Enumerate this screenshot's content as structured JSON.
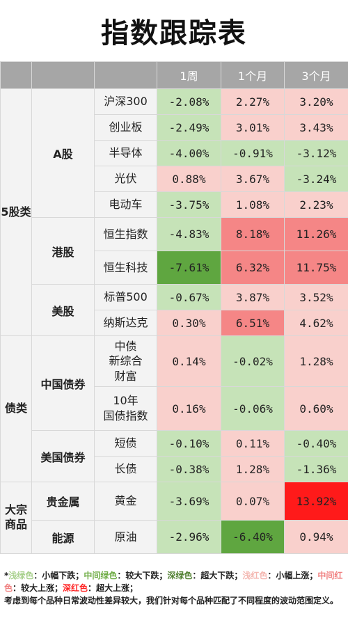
{
  "title": "指数跟踪表",
  "colors": {
    "light_green": "#c6e3b8",
    "mid_green": "#9fd089",
    "deep_green": "#5fa640",
    "light_red": "#f9d0cc",
    "mid_red": "#f58686",
    "deep_red": "#ff1a1a",
    "legend_light_green": "#a9d18e",
    "legend_mid_green": "#70ad47",
    "legend_deep_green": "#548235",
    "legend_light_red": "#f4b8b2",
    "legend_mid_red": "#f08080",
    "legend_deep_red": "#ff2020"
  },
  "chart_data": {
    "type": "table",
    "columns": [
      "",
      "",
      "",
      "1周",
      "1个月",
      "3个月"
    ],
    "categories": [
      {
        "name": "5股类",
        "groups": [
          {
            "name": "A股",
            "items": [
              {
                "name": "沪深300",
                "values": [
                  "-2.08%",
                  "2.27%",
                  "3.20%"
                ],
                "tones": [
                  "light_green",
                  "light_red",
                  "light_red"
                ]
              },
              {
                "name": "创业板",
                "values": [
                  "-2.49%",
                  "3.01%",
                  "3.43%"
                ],
                "tones": [
                  "light_green",
                  "light_red",
                  "light_red"
                ]
              },
              {
                "name": "半导体",
                "values": [
                  "-4.00%",
                  "-0.91%",
                  "-3.12%"
                ],
                "tones": [
                  "light_green",
                  "light_green",
                  "light_green"
                ]
              },
              {
                "name": "光伏",
                "values": [
                  "0.88%",
                  "3.67%",
                  "-3.24%"
                ],
                "tones": [
                  "light_red",
                  "light_red",
                  "light_green"
                ]
              },
              {
                "name": "电动车",
                "values": [
                  "-3.75%",
                  "1.08%",
                  "2.23%"
                ],
                "tones": [
                  "light_green",
                  "light_red",
                  "light_red"
                ]
              }
            ]
          },
          {
            "name": "港股",
            "items": [
              {
                "name": "恒生指数",
                "values": [
                  "-4.83%",
                  "8.18%",
                  "11.26%"
                ],
                "tones": [
                  "light_green",
                  "mid_red",
                  "mid_red"
                ]
              },
              {
                "name": "恒生科技",
                "values": [
                  "-7.61%",
                  "6.32%",
                  "11.75%"
                ],
                "tones": [
                  "deep_green",
                  "mid_red",
                  "mid_red"
                ]
              }
            ]
          },
          {
            "name": "美股",
            "items": [
              {
                "name": "标普500",
                "values": [
                  "-0.67%",
                  "3.87%",
                  "3.52%"
                ],
                "tones": [
                  "light_green",
                  "light_red",
                  "light_red"
                ]
              },
              {
                "name": "纳斯达克",
                "values": [
                  "0.30%",
                  "6.51%",
                  "4.62%"
                ],
                "tones": [
                  "light_red",
                  "mid_red",
                  "light_red"
                ]
              }
            ]
          }
        ]
      },
      {
        "name": "债类",
        "groups": [
          {
            "name": "中国债券",
            "items": [
              {
                "name": "中债\n新综合\n财富",
                "values": [
                  "0.14%",
                  "-0.02%",
                  "1.28%"
                ],
                "tones": [
                  "light_red",
                  "light_green",
                  "light_red"
                ]
              },
              {
                "name": "10年\n国债指数",
                "values": [
                  "0.16%",
                  "-0.06%",
                  "0.60%"
                ],
                "tones": [
                  "light_red",
                  "light_green",
                  "light_red"
                ]
              }
            ]
          },
          {
            "name": "美国债券",
            "items": [
              {
                "name": "短债",
                "values": [
                  "-0.10%",
                  "0.11%",
                  "-0.40%"
                ],
                "tones": [
                  "light_green",
                  "light_red",
                  "light_green"
                ]
              },
              {
                "name": "长债",
                "values": [
                  "-0.38%",
                  "1.28%",
                  "-1.36%"
                ],
                "tones": [
                  "light_green",
                  "light_red",
                  "light_green"
                ]
              }
            ]
          }
        ]
      },
      {
        "name": "大宗商品",
        "groups": [
          {
            "name": "贵金属",
            "items": [
              {
                "name": "黄金",
                "values": [
                  "-3.69%",
                  "0.07%",
                  "13.92%"
                ],
                "tones": [
                  "light_green",
                  "light_red",
                  "deep_red"
                ]
              }
            ]
          },
          {
            "name": "能源",
            "items": [
              {
                "name": "原油",
                "values": [
                  "-2.96%",
                  "-6.40%",
                  "0.94%"
                ],
                "tones": [
                  "light_green",
                  "deep_green",
                  "light_red"
                ]
              }
            ]
          }
        ]
      }
    ]
  },
  "legend": {
    "star": "*",
    "entries": [
      {
        "label": "浅绿色",
        "text": "：小幅下跌；",
        "color": "legend_light_green"
      },
      {
        "label": "中间绿色",
        "text": "：较大下跌；",
        "color": "legend_mid_green"
      },
      {
        "label": "深绿色",
        "text": "：超大下跌；",
        "color": "legend_deep_green"
      },
      {
        "label": "浅红色",
        "text": "：小幅上涨；",
        "color": "legend_light_red"
      },
      {
        "label": "中间红色",
        "text": "：较大上涨；",
        "color": "legend_mid_red"
      },
      {
        "label": "深红色",
        "text": "：超大上涨；",
        "color": "legend_deep_red"
      }
    ],
    "note": "考虑到每个品种日常波动性差异较大，我们针对每个品种匹配了不同程度的波动范围定义。"
  }
}
